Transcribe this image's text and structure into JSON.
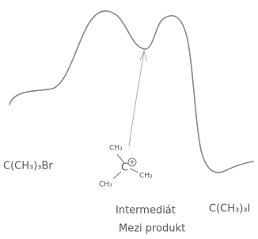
{
  "labels": {
    "reactant": "C(CH₃)₃Br",
    "product": "C(CH₃)₃I",
    "intermediate": "Intermediát",
    "intermediate_cz": "Mezi produkt"
  },
  "carbocation": {
    "methyl_top": "CH₃",
    "carbon": "C",
    "charge": "+",
    "methyl_right": "CH₃",
    "methyl_left": "CH₃"
  }
}
